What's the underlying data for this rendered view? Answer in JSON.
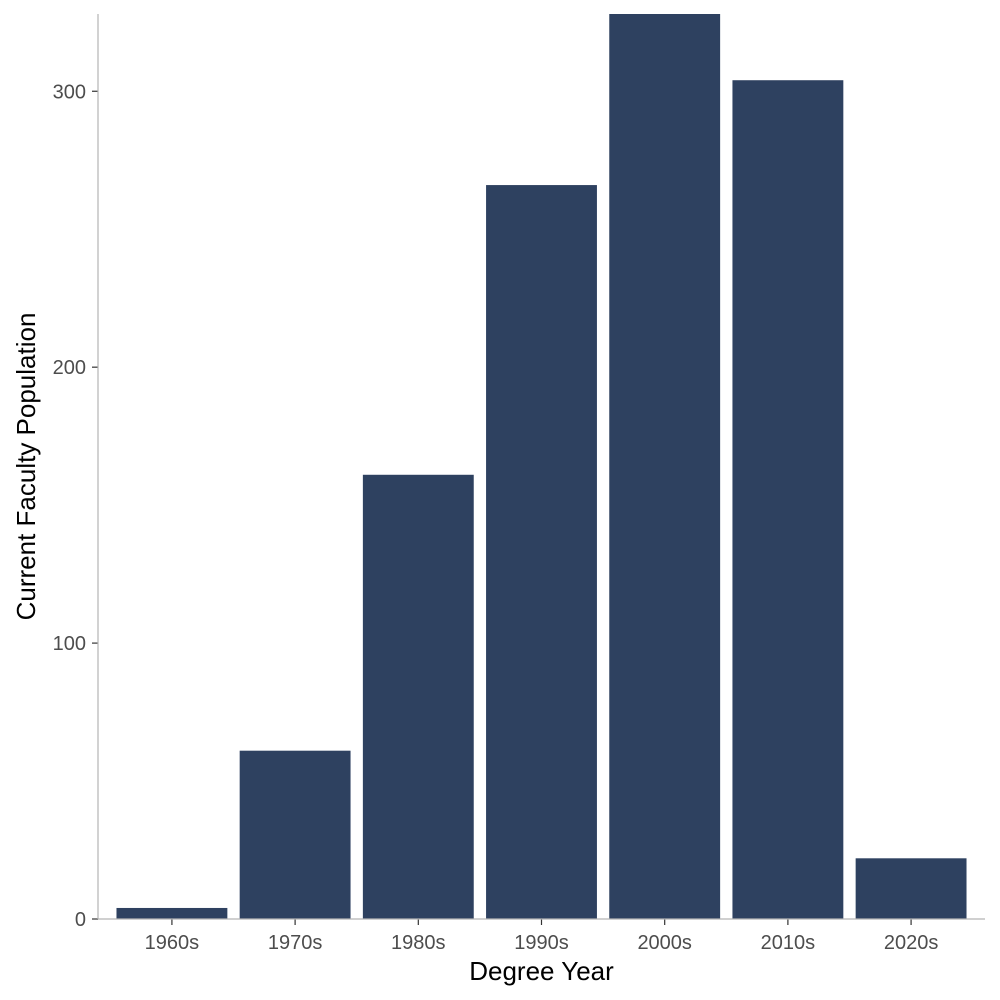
{
  "chart_data": {
    "type": "bar",
    "title": "",
    "xlabel": "Degree Year",
    "ylabel": "Current Faculty Population",
    "categories": [
      "1960s",
      "1970s",
      "1980s",
      "1990s",
      "2000s",
      "2010s",
      "2020s"
    ],
    "values": [
      4,
      61,
      161,
      266,
      328,
      304,
      22
    ],
    "ylim": [
      0,
      328
    ],
    "yticks": [
      0,
      100,
      200,
      300
    ],
    "grid": false,
    "legend": "none",
    "bar_color": "#2e4160",
    "axis_line_color": "#b3b3b3",
    "tick_label_color": "#4d4d4d"
  }
}
